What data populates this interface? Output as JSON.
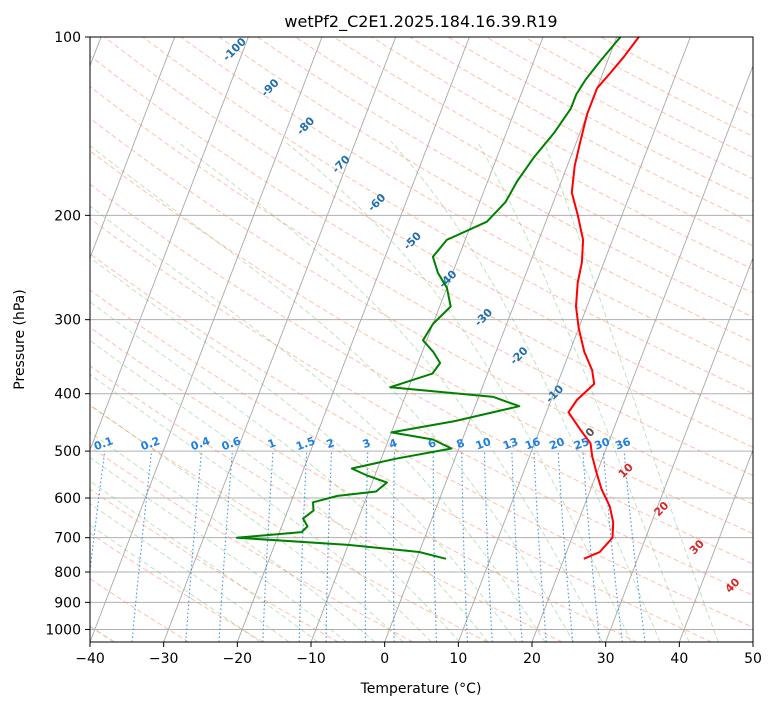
{
  "chart_data": {
    "type": "line",
    "subtype": "skew-t log-p",
    "title": "wetPf2_C2E1.2025.184.16.39.R19",
    "xlabel": "Temperature (°C)",
    "ylabel": "Pressure (hPa)",
    "xlim": [
      -40,
      50
    ],
    "ylim": [
      1050,
      100
    ],
    "y_scale": "log",
    "grid": true,
    "x_ticks": [
      "−40",
      "−30",
      "−20",
      "−10",
      "0",
      "10",
      "20",
      "30",
      "40",
      "50"
    ],
    "y_ticks": [
      "100",
      "200",
      "300",
      "400",
      "500",
      "600",
      "700",
      "800",
      "900",
      "1000"
    ],
    "series": [
      {
        "color": "#ff0000",
        "role": "temperature",
        "points": [
          [
            22.7,
            760
          ],
          [
            24.5,
            740
          ],
          [
            25.5,
            700
          ],
          [
            24.8,
            660
          ],
          [
            23.5,
            620
          ],
          [
            21.5,
            580
          ],
          [
            20.0,
            545
          ],
          [
            18.5,
            510
          ],
          [
            17.6,
            485
          ],
          [
            15.5,
            460
          ],
          [
            13.0,
            430
          ],
          [
            13.5,
            410
          ],
          [
            15.0,
            385
          ],
          [
            14.0,
            365
          ],
          [
            12.0,
            340
          ],
          [
            10.0,
            310
          ],
          [
            8.5,
            285
          ],
          [
            7.5,
            260
          ],
          [
            7.0,
            240
          ],
          [
            6.0,
            220
          ],
          [
            4.0,
            200
          ],
          [
            2.0,
            183
          ],
          [
            1.0,
            165
          ],
          [
            0.5,
            150
          ],
          [
            0.0,
            135
          ],
          [
            0.0,
            122
          ],
          [
            1.0,
            115
          ],
          [
            2.0,
            108
          ],
          [
            3.0,
            100
          ]
        ]
      },
      {
        "color": "#008000",
        "role": "dewpoint",
        "points": [
          [
            4.0,
            760
          ],
          [
            0.0,
            740
          ],
          [
            -10.0,
            720
          ],
          [
            -25.5,
            700
          ],
          [
            -17.0,
            685
          ],
          [
            -16.5,
            670
          ],
          [
            -17.5,
            650
          ],
          [
            -16.5,
            630
          ],
          [
            -17.0,
            610
          ],
          [
            -14.0,
            595
          ],
          [
            -9.0,
            585
          ],
          [
            -8.0,
            565
          ],
          [
            -11.0,
            550
          ],
          [
            -13.5,
            535
          ],
          [
            -8.0,
            515
          ],
          [
            -1.0,
            495
          ],
          [
            -4.0,
            478
          ],
          [
            -10.0,
            465
          ],
          [
            -2.0,
            445
          ],
          [
            6.0,
            420
          ],
          [
            2.0,
            405
          ],
          [
            -12.5,
            390
          ],
          [
            -7.5,
            370
          ],
          [
            -7.0,
            355
          ],
          [
            -8.5,
            340
          ],
          [
            -10.5,
            325
          ],
          [
            -10.0,
            305
          ],
          [
            -8.5,
            285
          ],
          [
            -10.0,
            265
          ],
          [
            -12.0,
            250
          ],
          [
            -13.5,
            235
          ],
          [
            -12.5,
            220
          ],
          [
            -8.0,
            205
          ],
          [
            -6.5,
            190
          ],
          [
            -6.0,
            175
          ],
          [
            -5.0,
            160
          ],
          [
            -3.5,
            145
          ],
          [
            -2.5,
            132
          ],
          [
            -2.5,
            125
          ],
          [
            -2.0,
            118
          ],
          [
            -1.0,
            110
          ],
          [
            0.5,
            100
          ]
        ]
      }
    ],
    "annotations": {
      "dry_adiabat_labels": [
        "-100",
        "-90",
        "-80",
        "-70",
        "-60",
        "-50",
        "-40",
        "-30",
        "-20",
        "-10",
        "0",
        "10",
        "20",
        "30",
        "40"
      ],
      "mixing_ratio_labels": [
        "0.1",
        "0.2",
        "0.4",
        "0.6",
        "1",
        "1.5",
        "2",
        "3",
        "4",
        "6",
        "8",
        "10",
        "13",
        "16",
        "20",
        "25",
        "30",
        "36"
      ]
    },
    "colors": {
      "temperature": "#ff0000",
      "dewpoint": "#008000",
      "isotherm": "#999999",
      "dry_adiabat": "#ff8c69",
      "moist_adiabat": "#66bb66",
      "mixing_ratio": "#1e7fe0",
      "adiabat_label_cold": "#1f6fb0",
      "adiabat_label_warm": "#d62728"
    }
  }
}
